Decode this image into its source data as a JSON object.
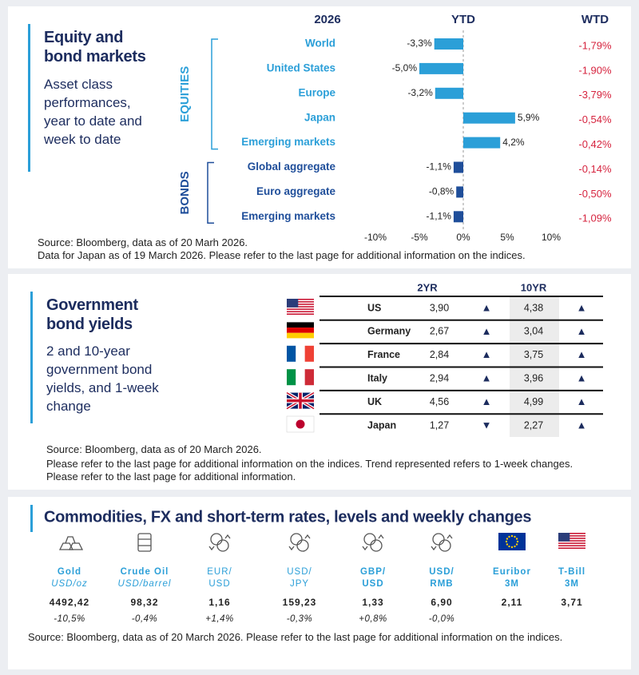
{
  "chart_data": {
    "type": "bar",
    "orientation": "horizontal",
    "title": "Equity and bond markets",
    "subtitle": "Asset class performances, year to date and week to date",
    "year": "2026",
    "groups": [
      {
        "name": "EQUITIES",
        "color": "#2b9fd8",
        "categories": [
          "World",
          "United States",
          "Europe",
          "Japan",
          "Emerging  markets"
        ]
      },
      {
        "name": "BONDS",
        "color": "#1f4e9a",
        "categories": [
          "Global aggregate",
          "Euro aggregate",
          "Emerging  markets"
        ]
      }
    ],
    "series": [
      {
        "name": "YTD",
        "values": [
          -3.3,
          -5.0,
          -3.2,
          5.9,
          4.2,
          -1.1,
          -0.8,
          -1.1
        ],
        "value_labels": [
          "-3,3%",
          "-5,0%",
          "-3,2%",
          "5,9%",
          "4,2%",
          "-1,1%",
          "-0,8%",
          "-1,1%"
        ]
      },
      {
        "name": "WTD",
        "color": "#d6243f",
        "values": [
          -1.79,
          -1.9,
          -3.79,
          -0.54,
          -0.42,
          -0.14,
          -0.5,
          -1.09
        ],
        "value_labels": [
          "-1,79%",
          "-1,90%",
          "-3,79%",
          "-0,54%",
          "-0,42%",
          "-0,14%",
          "-0,50%",
          "-1,09%"
        ]
      }
    ],
    "xlim": [
      -10,
      10
    ],
    "xticks": [
      {
        "value": -10,
        "label": "-10%"
      },
      {
        "value": -5,
        "label": "-5%"
      },
      {
        "value": 0,
        "label": "0%"
      },
      {
        "value": 5,
        "label": "5%"
      },
      {
        "value": 10,
        "label": "10%"
      }
    ],
    "notes": [
      "Source: Bloomberg, data as of 20 Marh 2026.",
      "Data for Japan as of 19 March 2026. Please refer to the last page for additional information on the indices."
    ]
  },
  "yields_panel": {
    "title": "Government bond yields",
    "subtitle": "2 and 10-year government bond yields, and 1-week change",
    "table": {
      "header": [
        "2YR",
        "10YR"
      ],
      "rows": [
        [
          "US",
          "3,90",
          "▲",
          "4,38",
          "▲"
        ],
        [
          "Germany",
          "2,67",
          "▲",
          "3,04",
          "▲"
        ],
        [
          "France",
          "2,84",
          "▲",
          "3,75",
          "▲"
        ],
        [
          "Italy",
          "2,94",
          "▲",
          "3,96",
          "▲"
        ],
        [
          "UK",
          "4,56",
          "▲",
          "4,99",
          "▲"
        ],
        [
          "Japan",
          "1,27",
          "▼",
          "2,27",
          "▲"
        ]
      ]
    },
    "notes": [
      "Source: Bloomberg, data as of 20  March 2026.",
      "Please refer to the last page for additional information on the indices. Trend represented refers to 1-week changes. Please refer to the last page for additional information."
    ]
  },
  "commodities_panel": {
    "title": "Commodities, FX and short-term rates, levels and weekly changes",
    "items": [
      {
        "label": [
          "Gold",
          "USD/oz"
        ],
        "level": "4492,42",
        "change": "-10,5%"
      },
      {
        "label": [
          "Crude Oil",
          "USD/barrel"
        ],
        "level": "98,32",
        "change": "-0,4%"
      },
      {
        "label": [
          "EUR/",
          "USD"
        ],
        "level": "1,16",
        "change": "+1,4%"
      },
      {
        "label": [
          "USD/",
          "JPY"
        ],
        "level": "159,23",
        "change": "-0,3%"
      },
      {
        "label": [
          "GBP/",
          "USD"
        ],
        "level": "1,33",
        "change": "+0,8%"
      },
      {
        "label": [
          "USD/",
          "RMB"
        ],
        "level": "6,90",
        "change": "-0,0%"
      },
      {
        "label": [
          "Euribor",
          "3M"
        ],
        "level": "2,11"
      },
      {
        "label": [
          "T-Bill",
          "3M"
        ],
        "level": "3,71"
      }
    ],
    "notes": [
      "Source: Bloomberg, data as of 20 March 2026. Please refer to the last page for additional information on the indices."
    ]
  }
}
